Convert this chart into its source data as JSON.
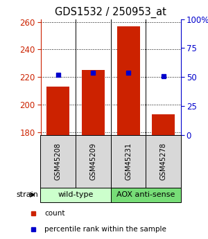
{
  "title": "GDS1532 / 250953_at",
  "samples": [
    "GSM45208",
    "GSM45209",
    "GSM45231",
    "GSM45278"
  ],
  "counts": [
    213,
    225,
    257,
    193
  ],
  "percentiles": [
    52,
    54,
    54,
    51
  ],
  "ylim_left": [
    178,
    262
  ],
  "ylim_right": [
    0,
    100
  ],
  "yticks_left": [
    180,
    200,
    220,
    240,
    260
  ],
  "yticks_right": [
    0,
    25,
    50,
    75,
    100
  ],
  "base": 178,
  "bar_color": "#cc2200",
  "pct_color": "#0000cc",
  "groups": [
    {
      "label": "wild-type",
      "start": 0,
      "end": 1,
      "color": "#ccffcc"
    },
    {
      "label": "AOX anti-sense",
      "start": 2,
      "end": 3,
      "color": "#77dd77"
    }
  ],
  "strain_label": "strain",
  "legend_items": [
    {
      "label": "count",
      "color": "#cc2200"
    },
    {
      "label": "percentile rank within the sample",
      "color": "#0000cc"
    }
  ]
}
